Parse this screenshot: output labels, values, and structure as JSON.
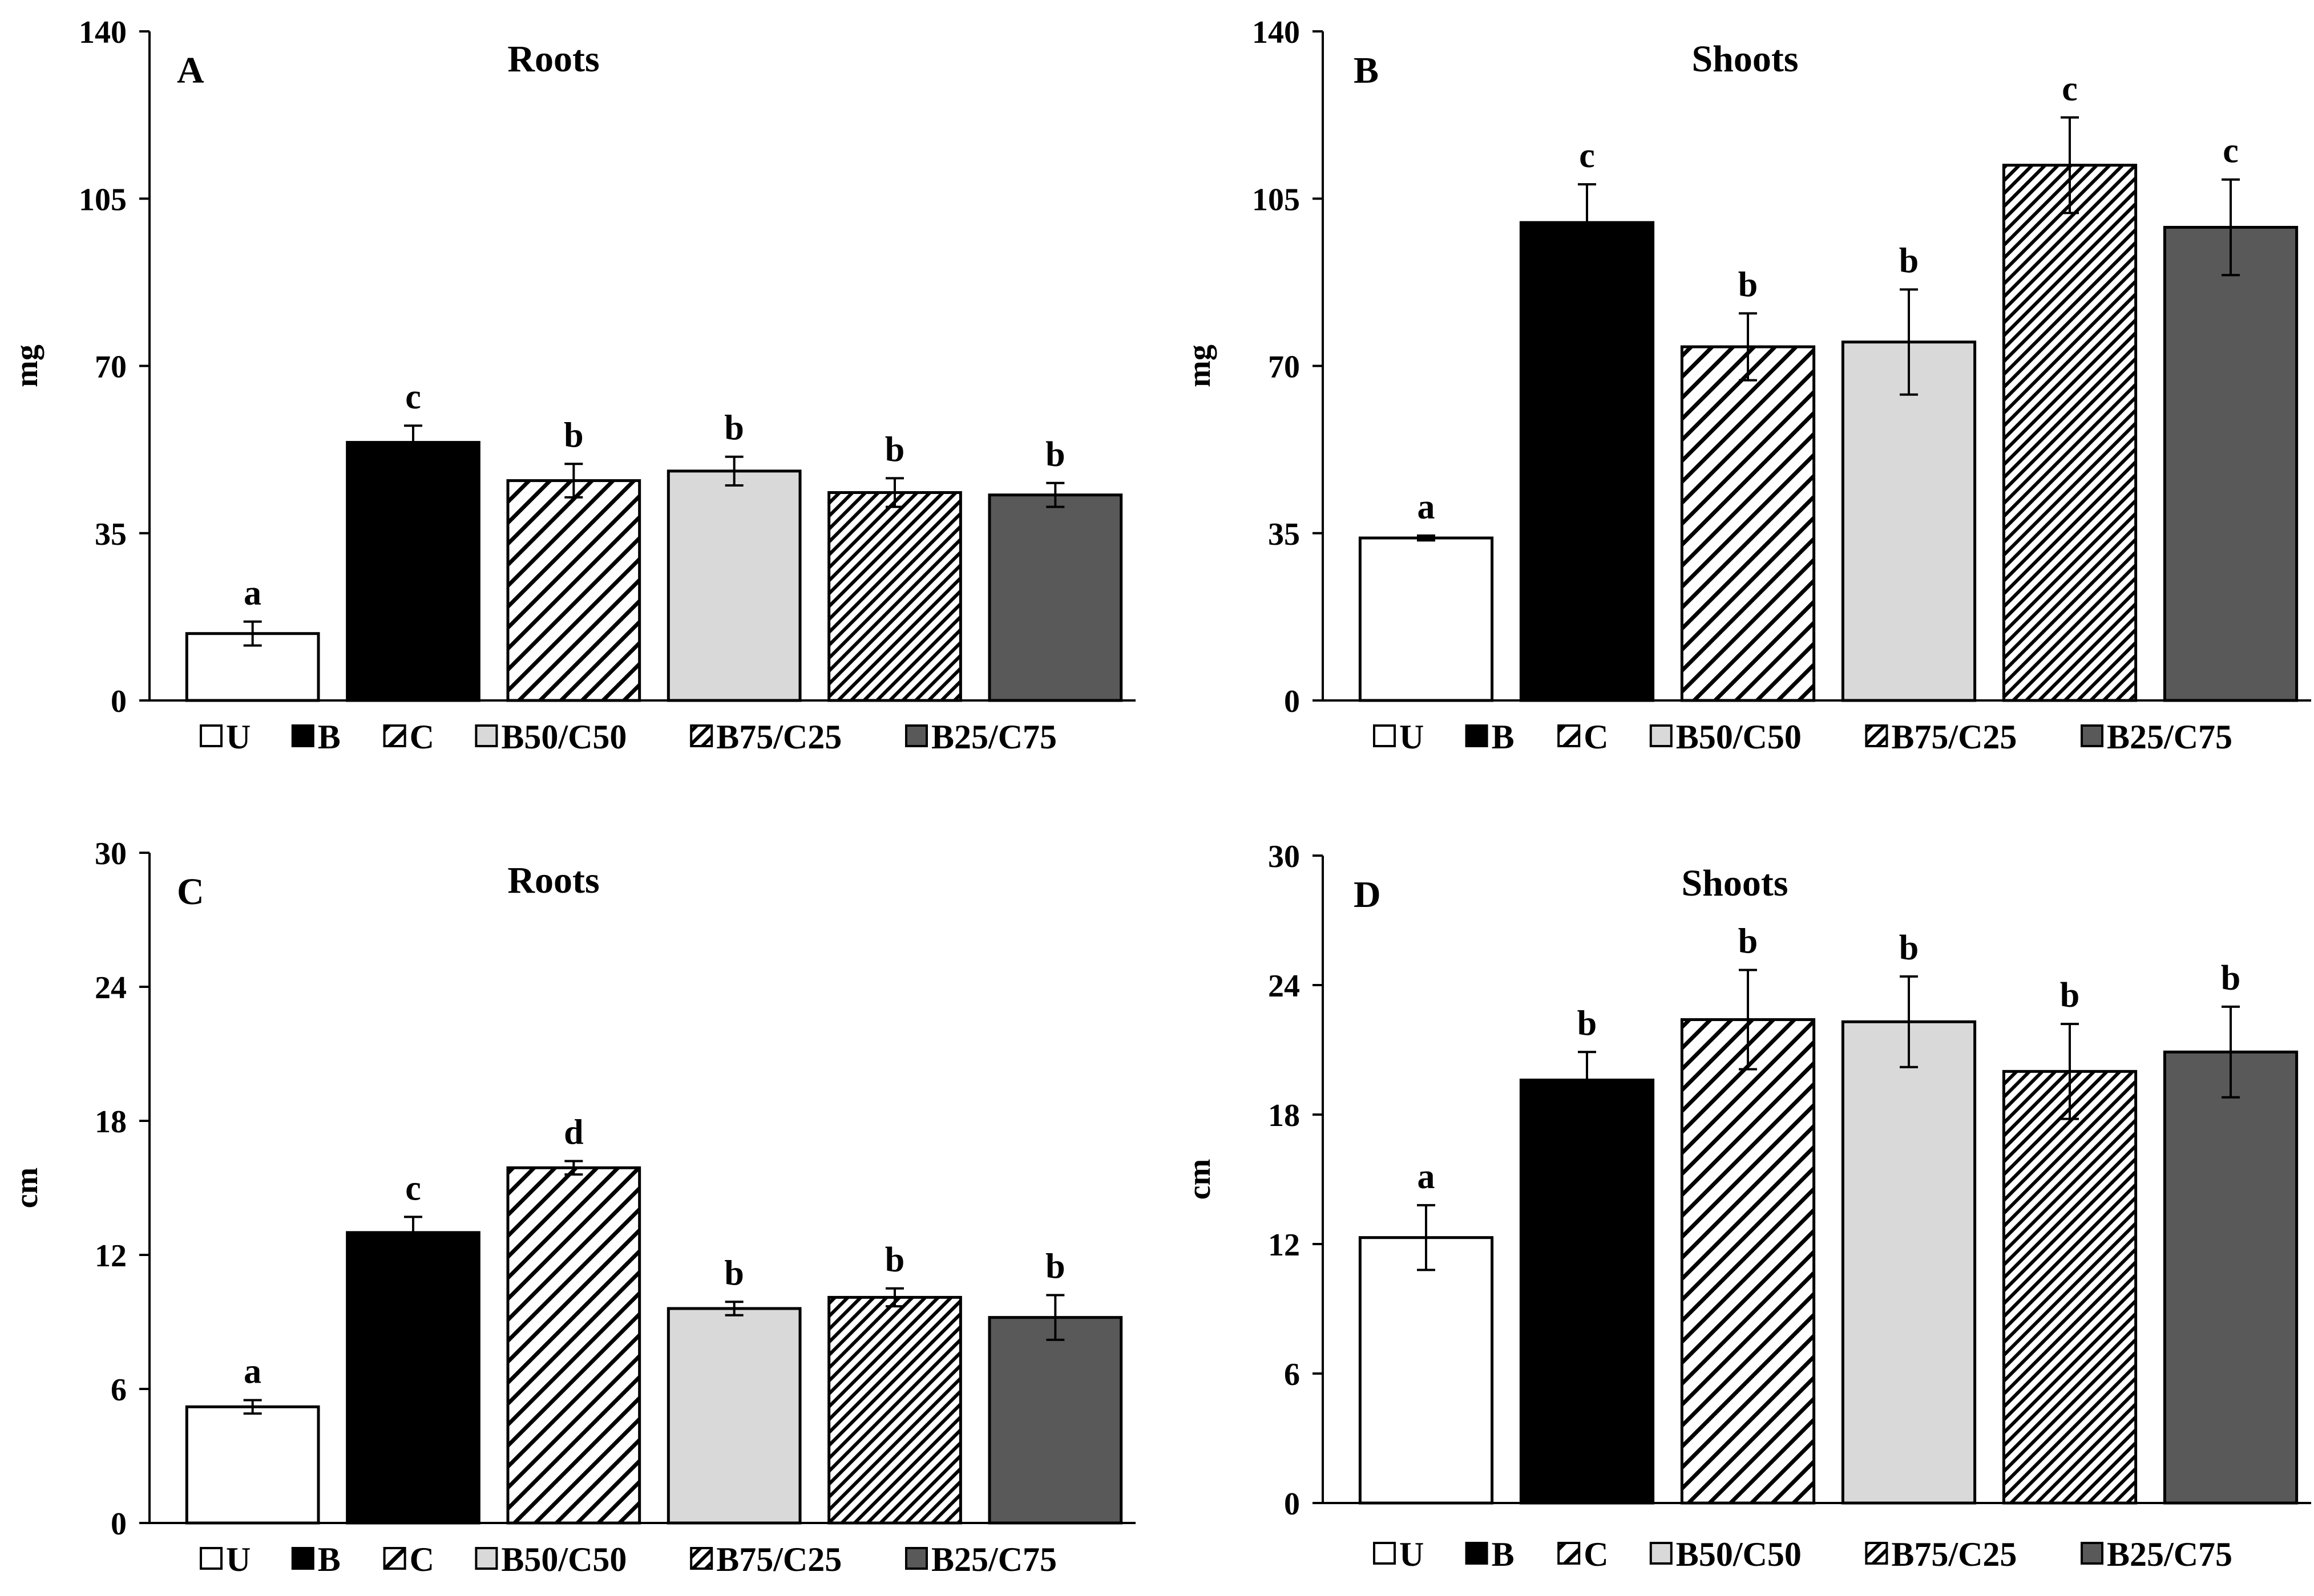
{
  "colors": {
    "U": "#ffffff",
    "B": "#000000",
    "C": "hatch-wide",
    "B50/C50": "#d9d9d9",
    "B75/C25": "hatch-dense",
    "B25/C75": "#595959"
  },
  "legend": [
    "U",
    "B",
    "C",
    "B50/C50",
    "B75/C25",
    "B25/C75"
  ],
  "chart_data": [
    {
      "type": "bar",
      "letter": "A",
      "title": "Roots",
      "ylabel": "mg",
      "xlabel": "",
      "ylim": [
        0,
        140
      ],
      "yticks": [
        0,
        35,
        70,
        105,
        140
      ],
      "categories": [
        "U",
        "B",
        "C",
        "B50/C50",
        "B75/C25",
        "B25/C75"
      ],
      "values": [
        14,
        54,
        46,
        48,
        43.5,
        43
      ],
      "errors": [
        2.5,
        3.5,
        3.5,
        3,
        3,
        2.5
      ],
      "significance": [
        "a",
        "c",
        "b",
        "b",
        "b",
        "b"
      ]
    },
    {
      "type": "bar",
      "letter": "B",
      "title": "Shoots",
      "ylabel": "mg",
      "xlabel": "",
      "ylim": [
        0,
        140
      ],
      "yticks": [
        0,
        35,
        70,
        105,
        140
      ],
      "categories": [
        "U",
        "B",
        "C",
        "B50/C50",
        "B75/C25",
        "B25/C75"
      ],
      "values": [
        34,
        100,
        74,
        75,
        112,
        99
      ],
      "errors": [
        0.5,
        8,
        7,
        11,
        10,
        10
      ],
      "significance": [
        "a",
        "c",
        "b",
        "b",
        "c",
        "c"
      ]
    },
    {
      "type": "bar",
      "letter": "C",
      "title": "Roots",
      "ylabel": "cm",
      "xlabel": "",
      "ylim": [
        0,
        30
      ],
      "yticks": [
        0,
        6,
        12,
        18,
        24,
        30
      ],
      "categories": [
        "U",
        "B",
        "C",
        "B50/C50",
        "B75/C25",
        "B25/C75"
      ],
      "values": [
        5.2,
        13,
        15.9,
        9.6,
        10.1,
        9.2
      ],
      "errors": [
        0.3,
        0.7,
        0.3,
        0.3,
        0.4,
        1.0
      ],
      "significance": [
        "a",
        "c",
        "d",
        "b",
        "b",
        "b"
      ]
    },
    {
      "type": "bar",
      "letter": "D",
      "title": "Shoots",
      "ylabel": "cm",
      "xlabel": "",
      "ylim": [
        0,
        30
      ],
      "yticks": [
        0,
        6,
        12,
        18,
        24,
        30
      ],
      "categories": [
        "U",
        "B",
        "C",
        "B50/C50",
        "B75/C25",
        "B25/C75"
      ],
      "values": [
        12.3,
        19.6,
        22.4,
        22.3,
        20.0,
        20.9
      ],
      "errors": [
        1.5,
        1.3,
        2.3,
        2.1,
        2.2,
        2.1
      ],
      "significance": [
        "a",
        "b",
        "b",
        "b",
        "b",
        "b"
      ]
    }
  ]
}
